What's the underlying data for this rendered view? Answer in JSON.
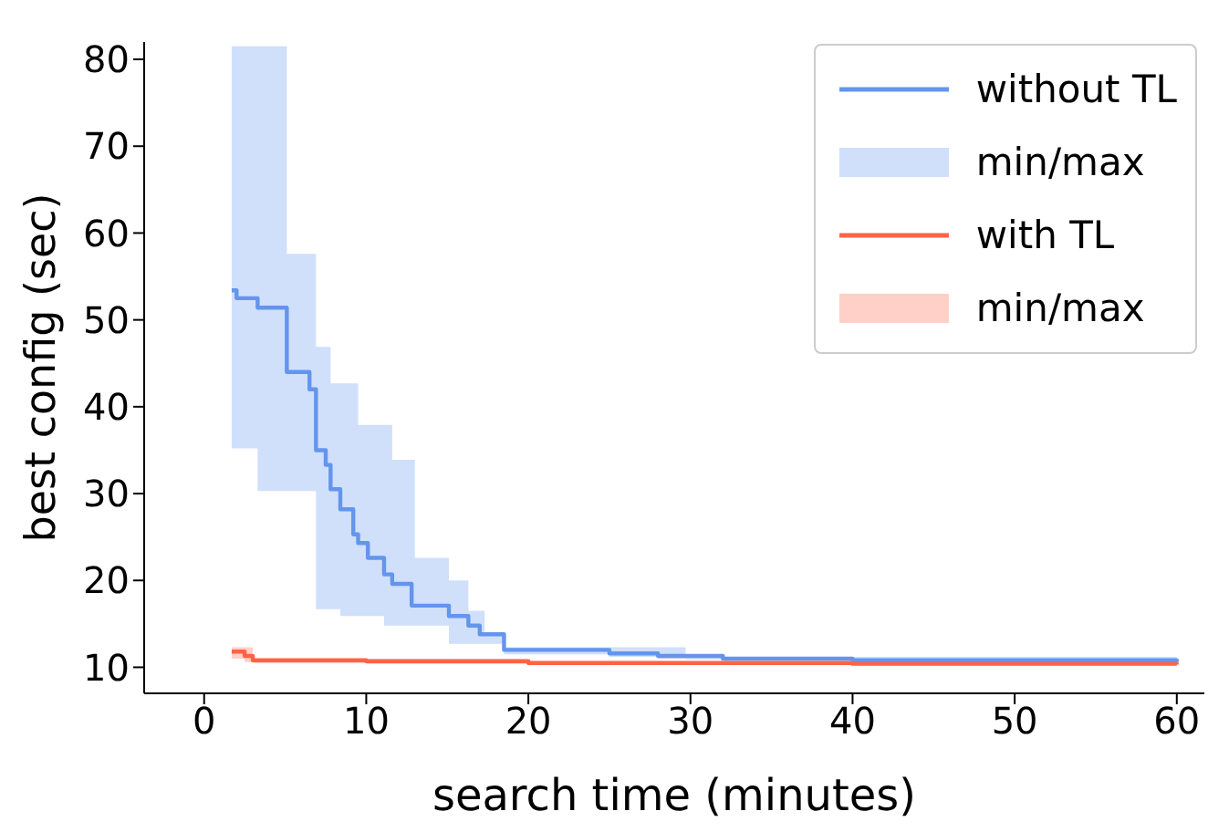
{
  "chart_data": {
    "type": "step",
    "xlabel": "search time (minutes)",
    "ylabel": "best config (sec)",
    "xlim": [
      -3.7,
      61.7
    ],
    "ylim": [
      7,
      82
    ],
    "xticks": [
      0,
      10,
      20,
      30,
      40,
      50,
      60
    ],
    "yticks": [
      10,
      20,
      30,
      40,
      50,
      60,
      70,
      80
    ],
    "grid": false,
    "legend": "top right",
    "marker": "none",
    "line_style": "solid",
    "annotations": [
      "min/max",
      "min/max"
    ],
    "series": [
      {
        "name": "without TL",
        "color": "#6495ed",
        "x": [
          1.7,
          2.0,
          3.3,
          5.1,
          6.5,
          6.9,
          7.5,
          7.8,
          8.4,
          9.2,
          9.5,
          10.1,
          11.1,
          11.6,
          12.8,
          13.0,
          15.1,
          16.3,
          17.0,
          17.3,
          18.5,
          22,
          25,
          28,
          29.7,
          32,
          40,
          60
        ],
        "values": [
          53.4,
          52.5,
          51.4,
          44,
          42,
          35,
          33.3,
          30.5,
          28.2,
          25.3,
          24.3,
          22.6,
          20.7,
          19.6,
          17.1,
          17.1,
          15.9,
          14.8,
          13.8,
          13.8,
          12.0,
          12.0,
          11.6,
          11.3,
          11.3,
          11.0,
          10.8,
          10.6
        ],
        "lower": [
          35.2,
          35.2,
          30.3,
          30.3,
          30.3,
          16.7,
          16.7,
          16.7,
          15.9,
          15.9,
          15.9,
          15.9,
          14.8,
          14.8,
          14.8,
          14.8,
          12.7,
          12.7,
          12.7,
          12.7,
          11.5,
          11.5,
          11.2,
          11.0,
          10.9,
          10.6,
          10.5,
          10.4
        ],
        "upper": [
          81.5,
          81.5,
          81.5,
          57.6,
          57.6,
          46.9,
          46.9,
          42.7,
          42.7,
          42.7,
          37.9,
          37.9,
          37.9,
          33.9,
          33.9,
          22.6,
          20,
          16.5,
          16.5,
          14.0,
          12.3,
          12.3,
          12.3,
          12.3,
          11.2,
          11.2,
          11.2,
          11.2
        ]
      },
      {
        "name": "with TL",
        "color": "#ff6347",
        "x": [
          1.7,
          2.5,
          3.0,
          10,
          20,
          40,
          60
        ],
        "values": [
          11.8,
          11.3,
          10.8,
          10.7,
          10.5,
          10.4,
          10.3
        ],
        "lower": [
          11.0,
          10.6,
          10.5,
          10.4,
          10.3,
          10.2,
          10.1
        ],
        "upper": [
          12.3,
          12.3,
          11.0,
          10.9,
          10.7,
          10.6,
          10.5
        ]
      }
    ]
  }
}
